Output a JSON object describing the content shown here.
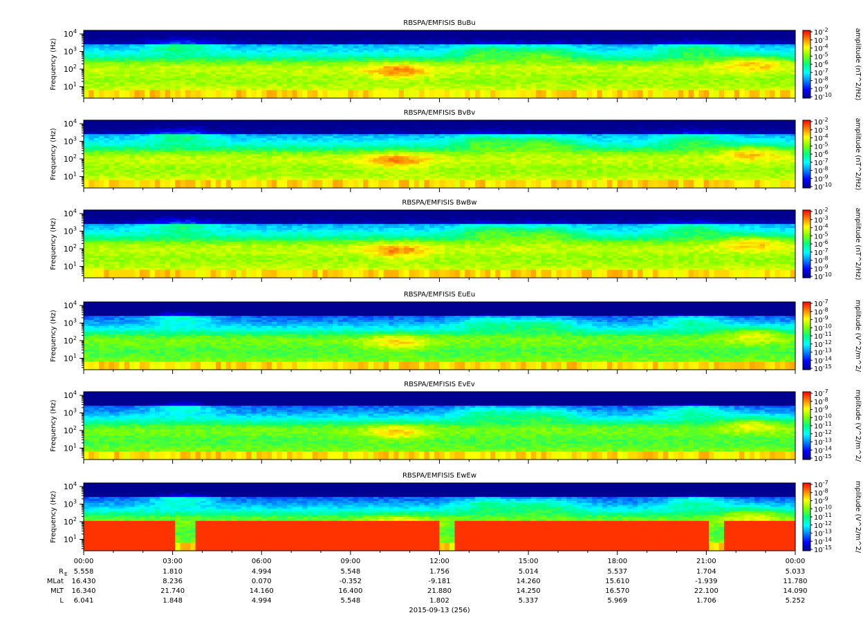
{
  "chart_data": {
    "type": "heatmap",
    "date_label": "2015-09-13 (256)",
    "x_ticks": [
      "00:00",
      "03:00",
      "06:00",
      "09:00",
      "12:00",
      "15:00",
      "18:00",
      "21:00",
      "00:00"
    ],
    "y_axis": {
      "label": "Frequency (Hz)",
      "scale": "log",
      "tick_exponents": [
        1,
        2,
        3,
        4
      ]
    },
    "panels": [
      {
        "title": "RBSPA/EMFISIS  BuBu",
        "cbar_label": "amplitude (nT^2/Hz)",
        "cbar_exponents": [
          -2,
          -3,
          -4,
          -5,
          -6,
          -7,
          -8,
          -9,
          -10
        ]
      },
      {
        "title": "RBSPA/EMFISIS  BvBv",
        "cbar_label": "amplitude (nT^2/Hz)",
        "cbar_exponents": [
          -2,
          -3,
          -4,
          -5,
          -6,
          -7,
          -8,
          -9,
          -10
        ]
      },
      {
        "title": "RBSPA/EMFISIS  BwBw",
        "cbar_label": "amplitude (nT^2/Hz)",
        "cbar_exponents": [
          -2,
          -3,
          -4,
          -5,
          -6,
          -7,
          -8,
          -9,
          -10
        ]
      },
      {
        "title": "RBSPA/EMFISIS  EuEu",
        "cbar_label": "mplitude (V^2/m^2/",
        "cbar_exponents": [
          -7,
          -8,
          -9,
          -10,
          -11,
          -12,
          -13,
          -14,
          -15
        ]
      },
      {
        "title": "RBSPA/EMFISIS  EvEv",
        "cbar_label": "mplitude (V^2/m^2/",
        "cbar_exponents": [
          -7,
          -8,
          -9,
          -10,
          -11,
          -12,
          -13,
          -14,
          -15
        ]
      },
      {
        "title": "RBSPA/EMFISIS  EwEw",
        "cbar_label": "mplitude (V^2/m^2/",
        "cbar_exponents": [
          -7,
          -8,
          -9,
          -10,
          -11,
          -12,
          -13,
          -14,
          -15
        ]
      }
    ],
    "ephemeris": [
      {
        "label": "R",
        "sub": "E",
        "values": [
          "5.558",
          "1.810",
          "4.994",
          "5.548",
          "1.756",
          "5.014",
          "5.537",
          "1.704",
          "5.033"
        ]
      },
      {
        "label": "MLat",
        "sub": "",
        "values": [
          "16.430",
          "8.236",
          "0.070",
          "-0.352",
          "-9.181",
          "14.260",
          "15.610",
          "-1.939",
          "11.780"
        ]
      },
      {
        "label": "MLT",
        "sub": "",
        "values": [
          "16.340",
          "21.740",
          "14.160",
          "16.400",
          "21.880",
          "14.250",
          "16.570",
          "22.100",
          "14.090"
        ]
      },
      {
        "label": "L",
        "sub": "",
        "values": [
          "6.041",
          "1.848",
          "4.994",
          "5.548",
          "1.802",
          "5.337",
          "5.969",
          "1.706",
          "5.252"
        ]
      }
    ],
    "colormap": [
      "#000090",
      "#0000ff",
      "#0080ff",
      "#00ffff",
      "#00ff80",
      "#80ff00",
      "#ffff00",
      "#ff8000",
      "#ff0000"
    ]
  }
}
